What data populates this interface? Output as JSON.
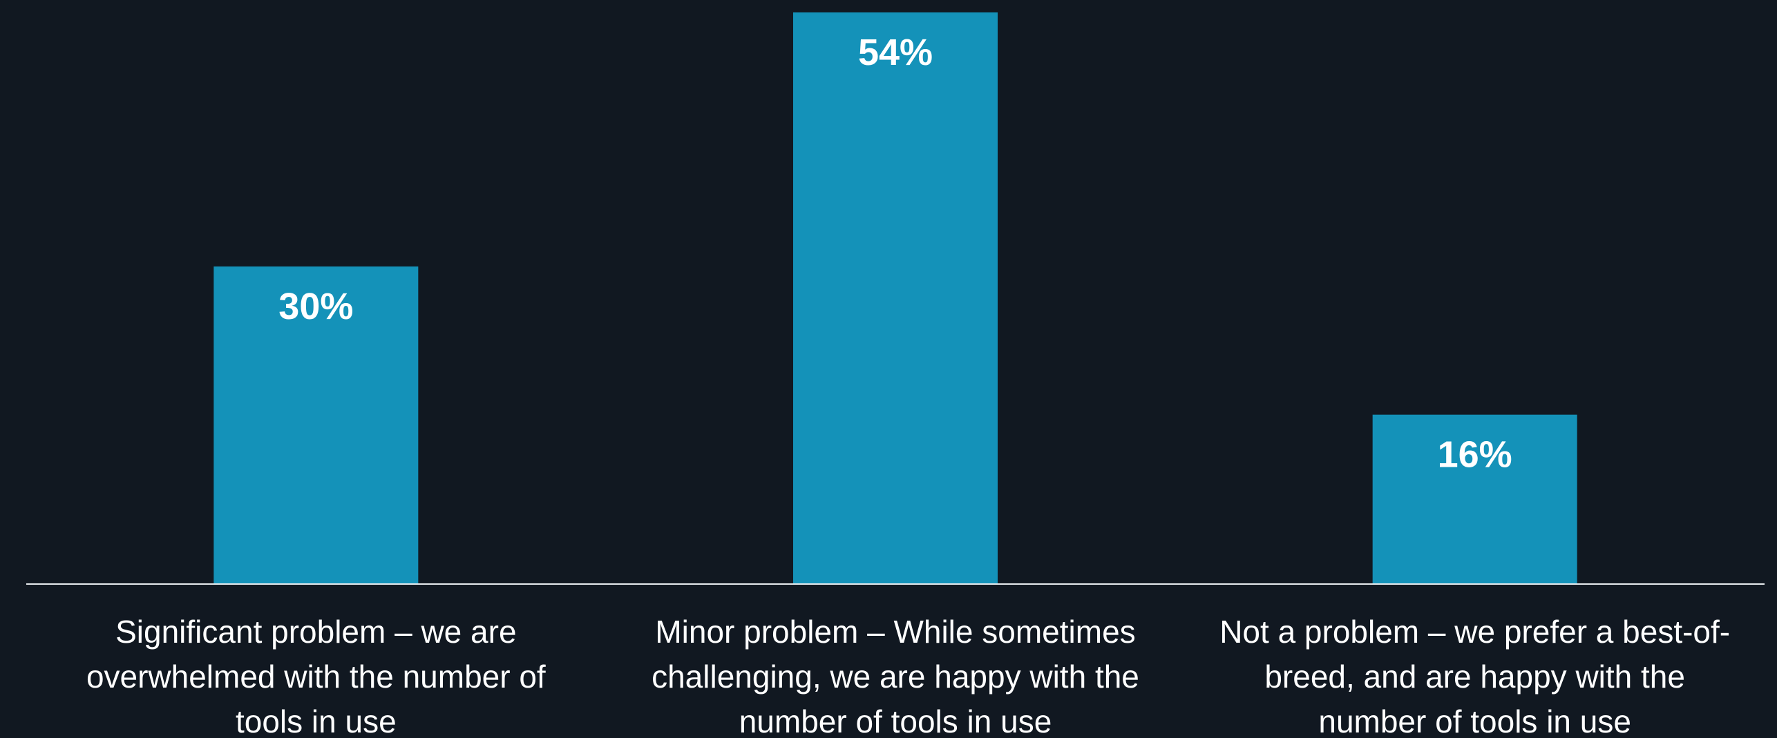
{
  "chart_data": {
    "type": "bar",
    "categories": [
      [
        "Significant problem – we are",
        "overwhelmed  with the number of",
        "tools in use"
      ],
      [
        "Minor problem – While sometimes",
        "challenging, we are happy with the",
        "number of tools in use"
      ],
      [
        "Not a problem – we prefer a best-of-",
        "breed, and are happy with the",
        "number of tools in use"
      ]
    ],
    "values": [
      30,
      54,
      16
    ],
    "data_labels": [
      "30%",
      "54%",
      "16%"
    ],
    "ylim": [
      0,
      54
    ],
    "grid": false,
    "legend": "none"
  },
  "colors": {
    "background": "#111821",
    "bar": "#1492b9",
    "axis": "#e8ecef",
    "text": "#ffffff"
  }
}
